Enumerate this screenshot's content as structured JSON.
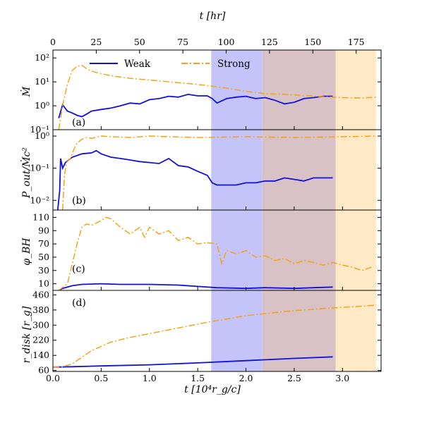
{
  "colors": {
    "weak": "#1010e0",
    "strong": "#f5a315",
    "band_blue": "#c4c4fa",
    "band_mauve": "#d8c2c6",
    "band_peach": "#ffe9c6"
  },
  "chart_data": {
    "type": "line",
    "top_axis": {
      "label": "t [hr]",
      "ticks": [
        "0",
        "25",
        "50",
        "75",
        "100",
        "125",
        "150",
        "175"
      ],
      "tick_values": [
        0,
        25,
        50,
        75,
        100,
        125,
        150,
        175
      ]
    },
    "x_axis": {
      "label": "t [10⁴r_g/c]",
      "range": [
        0,
        3.4
      ],
      "ticks": [
        "0.0",
        "0.5",
        "1.0",
        "1.5",
        "2.0",
        "2.5",
        "3.0"
      ],
      "tick_values": [
        0,
        0.5,
        1.0,
        1.5,
        2.0,
        2.5,
        3.0
      ]
    },
    "legend": {
      "position": "top",
      "entries": [
        "Weak",
        "Strong"
      ]
    },
    "bands": [
      {
        "x": [
          1.64,
          2.17
        ],
        "color": "band_blue"
      },
      {
        "x": [
          2.17,
          2.93
        ],
        "color": "band_mauve"
      },
      {
        "x": [
          2.93,
          3.35
        ],
        "color": "band_peach"
      }
    ],
    "panels": [
      {
        "tag": "(a)",
        "ylabel": "Ṁ",
        "scale": "log",
        "ylim": [
          0.1,
          200
        ],
        "ticks": [
          "10⁻¹",
          "10⁰",
          "10¹",
          "10²"
        ],
        "tick_values": [
          0.1,
          1,
          10,
          100
        ],
        "series": [
          {
            "name": "Weak",
            "style": "solid",
            "x": [
              0.06,
              0.1,
              0.15,
              0.2,
              0.25,
              0.3,
              0.35,
              0.4,
              0.5,
              0.6,
              0.7,
              0.8,
              0.9,
              1.0,
              1.1,
              1.2,
              1.3,
              1.4,
              1.5,
              1.6,
              1.65,
              1.7,
              1.8,
              1.9,
              2.0,
              2.1,
              2.2,
              2.3,
              2.4,
              2.5,
              2.6,
              2.7,
              2.8,
              2.9
            ],
            "y": [
              0.3,
              1.1,
              0.6,
              0.5,
              0.4,
              0.35,
              0.45,
              0.6,
              0.7,
              0.8,
              1.0,
              1.3,
              1.2,
              1.8,
              2.0,
              2.5,
              2.3,
              3.0,
              2.6,
              2.6,
              2.0,
              1.3,
              2.0,
              2.3,
              2.5,
              2.0,
              2.2,
              1.7,
              1.2,
              1.4,
              2.0,
              2.2,
              2.5,
              2.5
            ]
          },
          {
            "name": "Strong",
            "style": "dashed",
            "x": [
              0.06,
              0.1,
              0.15,
              0.2,
              0.25,
              0.3,
              0.35,
              0.4,
              0.5,
              0.6,
              0.8,
              1.0,
              1.2,
              1.4,
              1.6,
              1.8,
              2.0,
              2.2,
              2.4,
              2.6,
              2.8,
              3.0,
              3.2,
              3.35
            ],
            "y": [
              0.1,
              1.0,
              8.0,
              30,
              45,
              50,
              35,
              28,
              22,
              18,
              14,
              12,
              10,
              8.5,
              7.0,
              5.5,
              4.0,
              3.2,
              3.0,
              2.7,
              2.4,
              2.2,
              2.1,
              2.3
            ]
          }
        ]
      },
      {
        "tag": "(b)",
        "ylabel": "P_out/Ṁc²",
        "scale": "log",
        "ylim": [
          0.005,
          1.5
        ],
        "ticks": [
          "10⁻²",
          "10⁻¹",
          "10⁰"
        ],
        "tick_values": [
          0.01,
          0.1,
          1
        ],
        "series": [
          {
            "name": "Weak",
            "style": "solid",
            "x": [
              0.05,
              0.07,
              0.08,
              0.1,
              0.13,
              0.2,
              0.3,
              0.4,
              0.45,
              0.5,
              0.6,
              0.7,
              0.8,
              0.9,
              1.0,
              1.1,
              1.2,
              1.3,
              1.4,
              1.5,
              1.6,
              1.65,
              1.7,
              1.8,
              1.9,
              2.0,
              2.1,
              2.2,
              2.3,
              2.4,
              2.5,
              2.6,
              2.7,
              2.8,
              2.9
            ],
            "y": [
              0.005,
              0.02,
              0.2,
              0.1,
              0.15,
              0.22,
              0.28,
              0.3,
              0.35,
              0.28,
              0.22,
              0.2,
              0.18,
              0.16,
              0.15,
              0.14,
              0.2,
              0.12,
              0.11,
              0.08,
              0.06,
              0.035,
              0.03,
              0.03,
              0.03,
              0.035,
              0.035,
              0.04,
              0.04,
              0.05,
              0.045,
              0.04,
              0.05,
              0.05,
              0.05
            ]
          },
          {
            "name": "Strong",
            "style": "dashed",
            "x": [
              0.1,
              0.12,
              0.14,
              0.18,
              0.22,
              0.25,
              0.3,
              0.35,
              0.4,
              0.5,
              0.6,
              0.8,
              1.0,
              1.2,
              1.5,
              2.0,
              2.5,
              3.0,
              3.35
            ],
            "y": [
              0.005,
              0.06,
              0.15,
              0.2,
              0.4,
              0.6,
              0.8,
              0.9,
              0.85,
              1.0,
              0.95,
              0.9,
              1.0,
              0.95,
              0.9,
              0.95,
              0.9,
              0.95,
              1.0
            ]
          }
        ]
      },
      {
        "tag": "(c)",
        "ylabel": "φ_BH",
        "scale": "linear",
        "ylim": [
          0,
          120
        ],
        "ticks": [
          "10",
          "30",
          "50",
          "70",
          "90",
          "110"
        ],
        "tick_values": [
          10,
          30,
          50,
          70,
          90,
          110
        ],
        "series": [
          {
            "name": "Weak",
            "style": "solid",
            "x": [
              0.06,
              0.1,
              0.2,
              0.3,
              0.5,
              0.7,
              1.0,
              1.3,
              1.5,
              1.7,
              2.0,
              2.2,
              2.5,
              2.7,
              2.9
            ],
            "y": [
              0,
              3,
              7,
              9,
              10,
              9,
              9,
              8,
              6,
              4,
              3,
              4,
              3,
              4,
              5
            ]
          },
          {
            "name": "Strong",
            "style": "dashed",
            "x": [
              0.06,
              0.15,
              0.2,
              0.25,
              0.3,
              0.35,
              0.4,
              0.5,
              0.55,
              0.6,
              0.7,
              0.75,
              0.8,
              0.9,
              0.95,
              1.0,
              1.1,
              1.2,
              1.3,
              1.4,
              1.5,
              1.6,
              1.7,
              1.75,
              1.8,
              1.9,
              2.0,
              2.1,
              2.2,
              2.3,
              2.4,
              2.5,
              2.6,
              2.7,
              2.8,
              2.9,
              3.0,
              3.1,
              3.2,
              3.3
            ],
            "y": [
              0,
              10,
              40,
              70,
              95,
              100,
              98,
              105,
              110,
              108,
              95,
              90,
              85,
              95,
              80,
              95,
              85,
              90,
              75,
              80,
              70,
              72,
              70,
              40,
              60,
              55,
              60,
              50,
              52,
              45,
              48,
              40,
              45,
              42,
              38,
              42,
              38,
              35,
              30,
              35
            ]
          }
        ]
      },
      {
        "tag": "(d)",
        "ylabel": "r_disk [r_g]",
        "scale": "linear",
        "ylim": [
          55,
          480
        ],
        "ticks": [
          "60",
          "140",
          "220",
          "300",
          "380",
          "460"
        ],
        "tick_values": [
          60,
          140,
          220,
          300,
          380,
          460
        ],
        "series": [
          {
            "name": "Weak",
            "style": "solid",
            "x": [
              0,
              0.2,
              0.5,
              1.0,
              1.5,
              2.0,
              2.5,
              2.9
            ],
            "y": [
              78,
              80,
              84,
              90,
              100,
              112,
              124,
              132
            ]
          },
          {
            "name": "Strong",
            "style": "dashed",
            "x": [
              0,
              0.1,
              0.2,
              0.3,
              0.4,
              0.6,
              0.8,
              1.0,
              1.3,
              1.6,
              2.0,
              2.4,
              2.8,
              3.2,
              3.35
            ],
            "y": [
              78,
              80,
              95,
              130,
              165,
              210,
              235,
              255,
              285,
              315,
              350,
              372,
              388,
              400,
              406
            ]
          }
        ]
      }
    ]
  }
}
